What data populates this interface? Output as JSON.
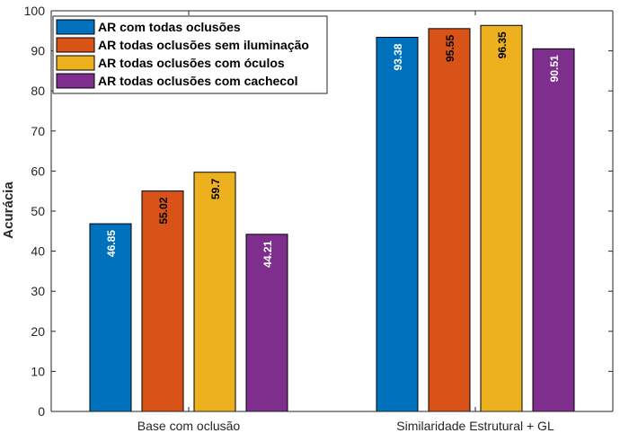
{
  "chart_data": {
    "type": "bar",
    "categories": [
      "Base com oclusão",
      "Similaridade Estrutural + GL"
    ],
    "series": [
      {
        "name": "AR com todas oclusões",
        "values": [
          46.85,
          93.38
        ],
        "color": "#0072BD",
        "label_color": "#ffffff"
      },
      {
        "name": "AR todas oclusões sem iluminação",
        "values": [
          55.02,
          95.55
        ],
        "color": "#D95319",
        "label_color": "#000000"
      },
      {
        "name": "AR todas oclusões com óculos",
        "values": [
          59.7,
          96.35
        ],
        "color": "#EDB120",
        "label_color": "#000000"
      },
      {
        "name": "AR todas oclusões com cachecol",
        "values": [
          44.21,
          90.51
        ],
        "color": "#7E2F8E",
        "label_color": "#ffffff"
      }
    ],
    "data_labels": [
      [
        "46.85",
        "93.38"
      ],
      [
        "55.02",
        "95.55"
      ],
      [
        "59.7",
        "96.35"
      ],
      [
        "44.21",
        "90.51"
      ]
    ],
    "ylabel": "Acurácia",
    "xlabel": "",
    "ylim": [
      0,
      100
    ],
    "yticks": [
      0,
      10,
      20,
      30,
      40,
      50,
      60,
      70,
      80,
      90,
      100
    ],
    "legend_position": "top-left",
    "grid": false
  }
}
